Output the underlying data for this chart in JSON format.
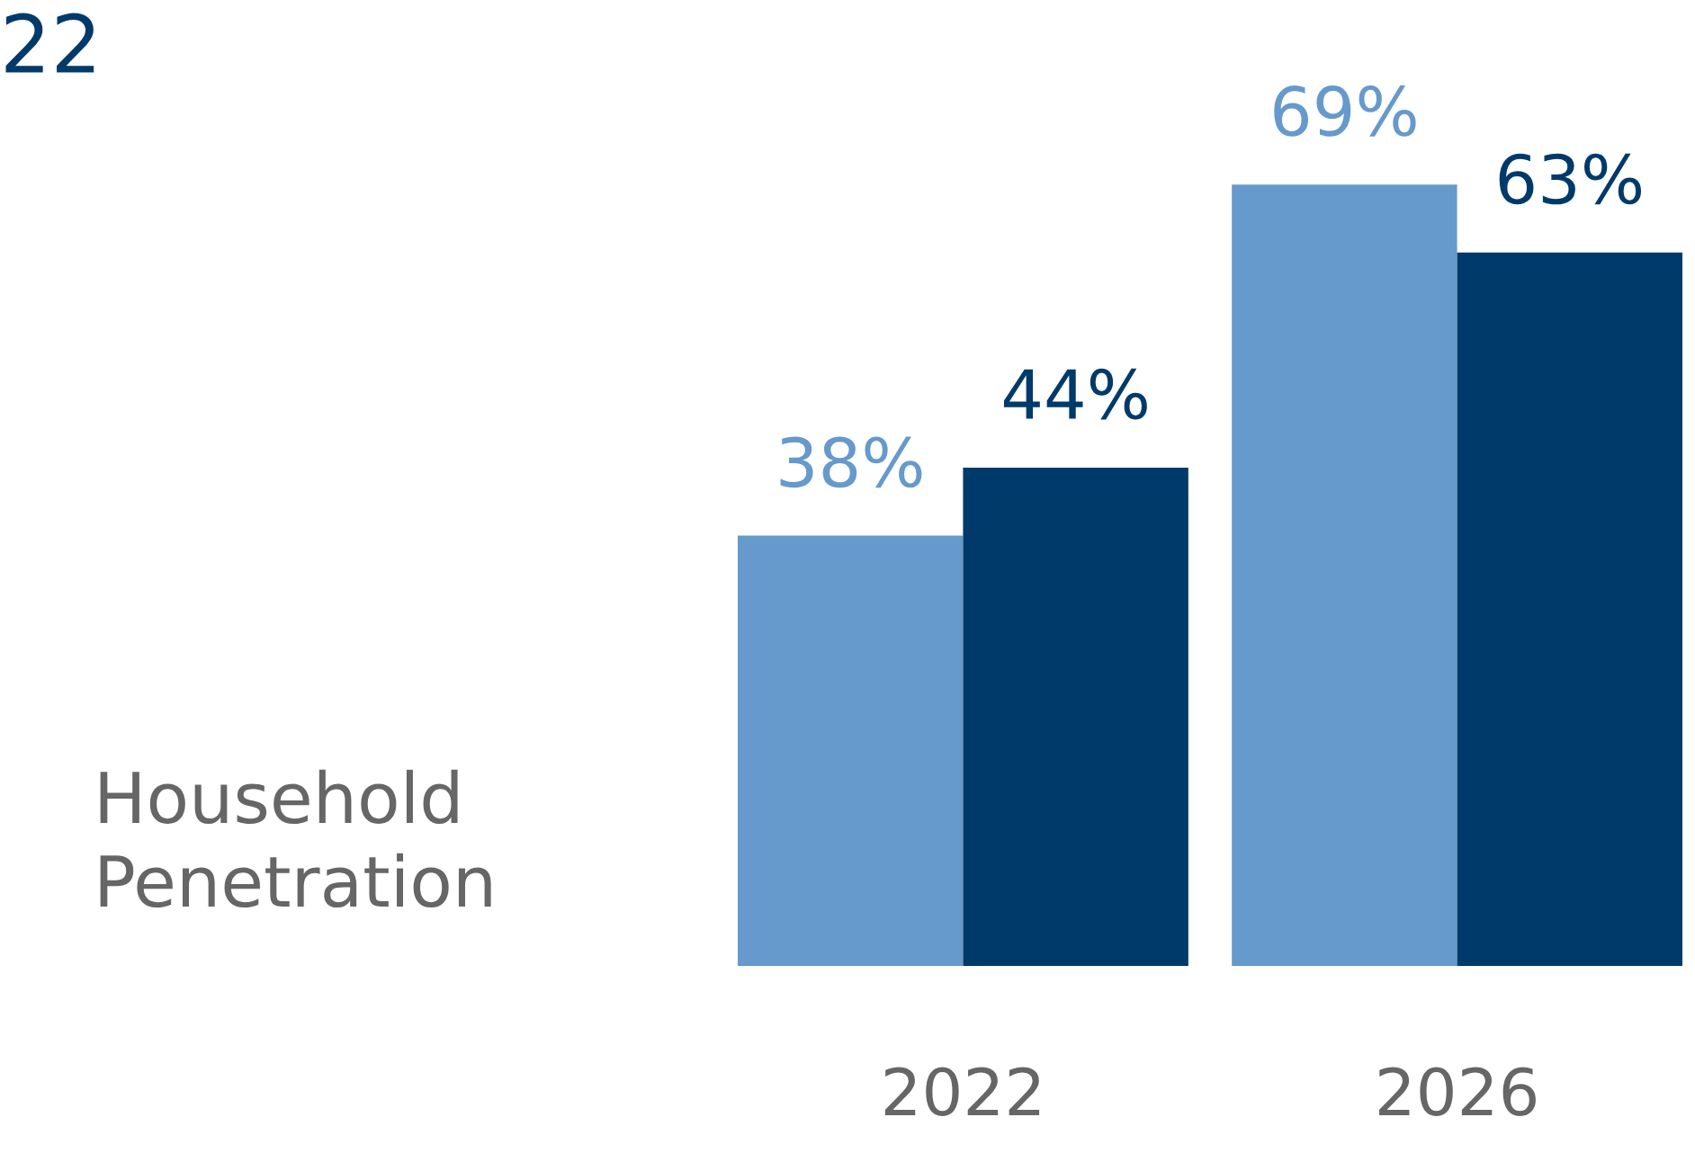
{
  "chart_data": {
    "type": "bar",
    "title": "22",
    "ylabel": "Household\nPenetration",
    "categories": [
      "2022",
      "2026"
    ],
    "series": [
      {
        "color": "#6699cc",
        "values": [
          38,
          69
        ],
        "value_labels": [
          "38%",
          "69%"
        ]
      },
      {
        "color": "#003a6b",
        "values": [
          44,
          63
        ],
        "value_labels": [
          "44%",
          "63%"
        ]
      }
    ],
    "grid": false,
    "legend": false
  }
}
